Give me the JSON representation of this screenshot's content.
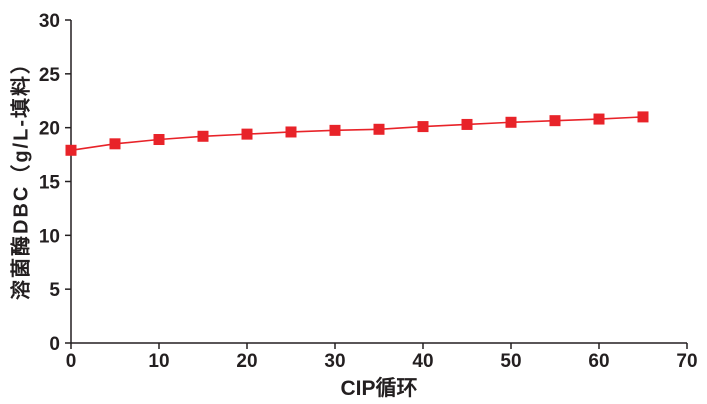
{
  "page": {
    "background": "#ffffff"
  },
  "chart_data": {
    "type": "line",
    "title": "",
    "xlabel": "CIP循环",
    "ylabel": "溶菌酶DBC（g/L-填料）",
    "xlim": [
      0,
      70
    ],
    "ylim": [
      0,
      30
    ],
    "x_ticks": [
      0,
      10,
      20,
      30,
      40,
      50,
      60,
      70
    ],
    "y_ticks": [
      0,
      5,
      10,
      15,
      20,
      25,
      30
    ],
    "grid": false,
    "legend": "none",
    "axis_color": "#231f20",
    "series_color": "#e82329",
    "marker": "square",
    "x": [
      0,
      5,
      10,
      15,
      20,
      25,
      30,
      35,
      40,
      45,
      50,
      55,
      60,
      65
    ],
    "y": [
      17.9,
      18.5,
      18.9,
      19.2,
      19.4,
      19.6,
      19.75,
      19.85,
      20.1,
      20.3,
      20.5,
      20.65,
      20.8,
      21.0
    ]
  }
}
